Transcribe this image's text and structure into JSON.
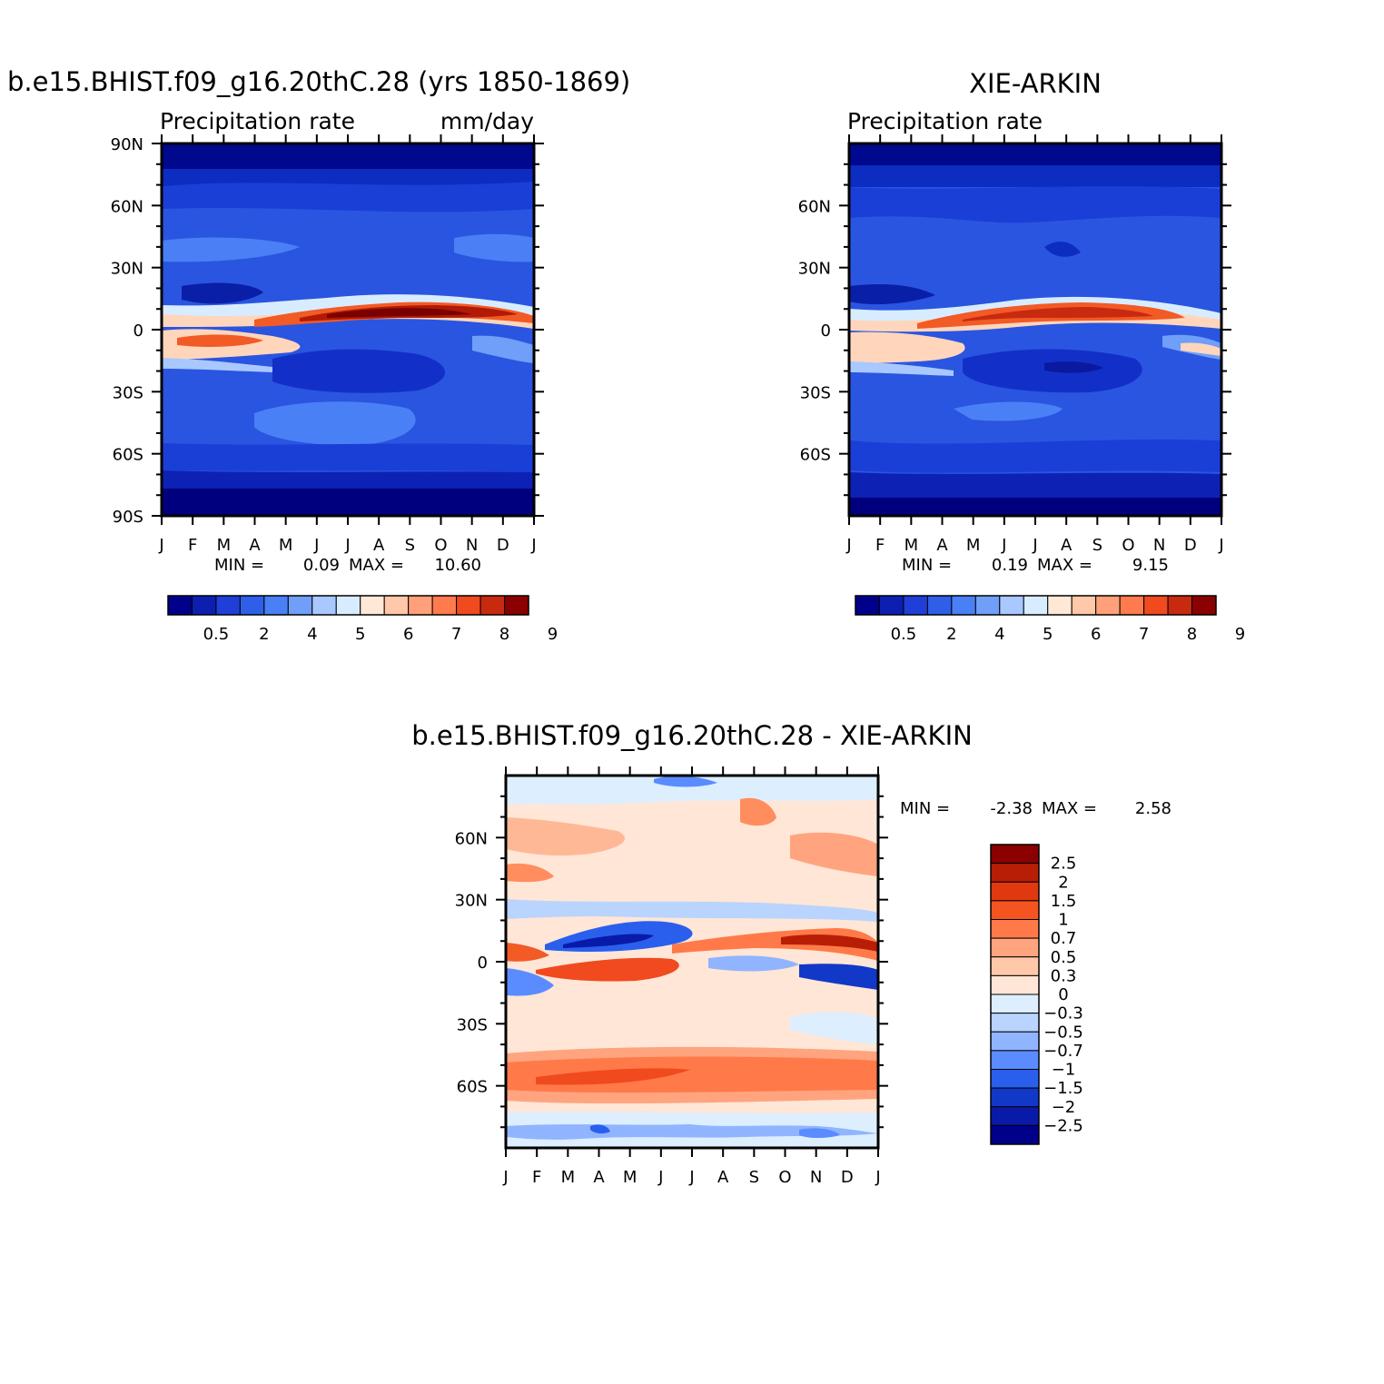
{
  "chart_data": [
    {
      "type": "heatmap",
      "id": "model",
      "title": "b.e15.BHIST.f09_g16.20thC.28 (yrs 1850-1869)",
      "subtitle_left": "Precipitation rate",
      "subtitle_right": "mm/day",
      "x_ticks": [
        "J",
        "F",
        "M",
        "A",
        "M",
        "J",
        "J",
        "A",
        "S",
        "O",
        "N",
        "D",
        "J"
      ],
      "y_ticks": [
        "90N",
        "60N",
        "30N",
        "0",
        "30S",
        "60S",
        "90S"
      ],
      "ylim": [
        -90,
        90
      ],
      "stats": {
        "min_label": "MIN =",
        "min": "0.09",
        "max_label": "MAX =",
        "max": "10.60"
      },
      "colorbar": {
        "orientation": "horizontal",
        "labels": [
          "0.5",
          "2",
          "4",
          "5",
          "6",
          "7",
          "8",
          "9"
        ],
        "colors": [
          "#00008b",
          "#0d1fb0",
          "#1f3fd8",
          "#2f5fe8",
          "#4a80f5",
          "#6f9ff8",
          "#a8c8ff",
          "#d8ecff",
          "#ffe8d6",
          "#ffc8a8",
          "#ffa07a",
          "#ff7a4d",
          "#f04a1e",
          "#c82a10",
          "#8b0000"
        ]
      }
    },
    {
      "type": "heatmap",
      "id": "obs",
      "title": "XIE-ARKIN",
      "subtitle_left": "Precipitation rate",
      "x_ticks": [
        "J",
        "F",
        "M",
        "A",
        "M",
        "J",
        "J",
        "A",
        "S",
        "O",
        "N",
        "D",
        "J"
      ],
      "y_ticks": [
        "60N",
        "30N",
        "0",
        "30S",
        "60S"
      ],
      "ylim": [
        -90,
        90
      ],
      "stats": {
        "min_label": "MIN =",
        "min": "0.19",
        "max_label": "MAX =",
        "max": "9.15"
      },
      "colorbar": {
        "orientation": "horizontal",
        "labels": [
          "0.5",
          "2",
          "4",
          "5",
          "6",
          "7",
          "8",
          "9"
        ],
        "colors": [
          "#00008b",
          "#0d1fb0",
          "#1f3fd8",
          "#2f5fe8",
          "#4a80f5",
          "#6f9ff8",
          "#a8c8ff",
          "#d8ecff",
          "#ffe8d6",
          "#ffc8a8",
          "#ffa07a",
          "#ff7a4d",
          "#f04a1e",
          "#c82a10",
          "#8b0000"
        ]
      }
    },
    {
      "type": "heatmap",
      "id": "diff",
      "title": "b.e15.BHIST.f09_g16.20thC.28 - XIE-ARKIN",
      "x_ticks": [
        "J",
        "F",
        "M",
        "A",
        "M",
        "J",
        "J",
        "A",
        "S",
        "O",
        "N",
        "D",
        "J"
      ],
      "y_ticks": [
        "60N",
        "30N",
        "0",
        "30S",
        "60S"
      ],
      "ylim": [
        -90,
        90
      ],
      "stats": {
        "min_label": "MIN =",
        "min": "-2.38",
        "max_label": "MAX =",
        "max": "2.58"
      },
      "colorbar": {
        "orientation": "vertical",
        "labels": [
          "2.5",
          "2",
          "1.5",
          "1",
          "0.7",
          "0.5",
          "0.3",
          "0",
          "-0.3",
          "-0.5",
          "-0.7",
          "-1",
          "-1.5",
          "-2",
          "-2.5"
        ],
        "colors": [
          "#8b0000",
          "#b81e05",
          "#e0380f",
          "#f45520",
          "#ff7a48",
          "#ffa47e",
          "#ffc8a8",
          "#ffe6d6",
          "#ddeeff",
          "#b8d4ff",
          "#90b4ff",
          "#5a8cff",
          "#2a5fee",
          "#1238c8",
          "#0a1aa8",
          "#00008b"
        ]
      }
    }
  ]
}
